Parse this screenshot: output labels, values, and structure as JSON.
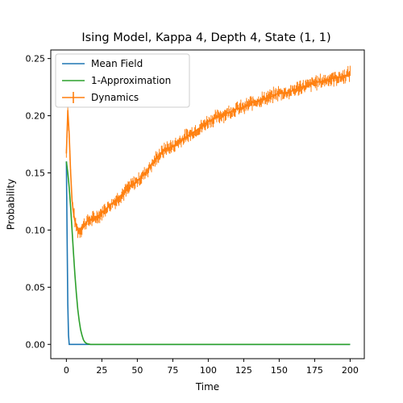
{
  "chart_data": {
    "type": "line",
    "title": "Ising Model, Kappa 4, Depth 4, State (1, 1)",
    "xlabel": "Time",
    "ylabel": "Probability",
    "xlim": [
      -11,
      210
    ],
    "ylim": [
      -0.0125,
      0.2575
    ],
    "xticks": [
      0,
      25,
      50,
      75,
      100,
      125,
      150,
      175,
      200
    ],
    "xtick_labels": [
      "0",
      "25",
      "50",
      "75",
      "100",
      "125",
      "150",
      "175",
      "200"
    ],
    "yticks": [
      0.0,
      0.05,
      0.1,
      0.15,
      0.2,
      0.25
    ],
    "ytick_labels": [
      "0.00",
      "0.05",
      "0.10",
      "0.15",
      "0.20",
      "0.25"
    ],
    "grid": false,
    "legend_position": "upper-left",
    "series": [
      {
        "name": "Mean Field",
        "color": "#1f77b4",
        "style": "line",
        "x": [
          0,
          0.5,
          1,
          1.5,
          2,
          3,
          5,
          10,
          25,
          50,
          100,
          150,
          200
        ],
        "y": [
          0.16,
          0.095,
          0.035,
          0.008,
          0.0,
          0.0,
          0.0,
          0.0,
          0.0,
          0.0,
          0.0,
          0.0,
          0.0
        ]
      },
      {
        "name": "1-Approximation",
        "color": "#2ca02c",
        "style": "line",
        "x": [
          0,
          1,
          2,
          3,
          4,
          5,
          6,
          7,
          8,
          9,
          10,
          11,
          12,
          13,
          14,
          15,
          17,
          20,
          25,
          50,
          100,
          150,
          200
        ],
        "y": [
          0.16,
          0.15,
          0.137,
          0.12,
          0.1,
          0.08,
          0.061,
          0.045,
          0.031,
          0.021,
          0.013,
          0.008,
          0.004,
          0.002,
          0.001,
          0.0005,
          0.0,
          0.0,
          0.0,
          0.0,
          0.0,
          0.0,
          0.0
        ]
      },
      {
        "name": "Dynamics",
        "color": "#ff7f0e",
        "style": "errorbar",
        "x": [
          0,
          1,
          2,
          3,
          4,
          5,
          6,
          7,
          8,
          9,
          10,
          12,
          15,
          20,
          25,
          30,
          35,
          40,
          45,
          50,
          55,
          60,
          65,
          70,
          75,
          80,
          85,
          90,
          95,
          100,
          105,
          110,
          115,
          120,
          125,
          130,
          135,
          140,
          145,
          150,
          155,
          160,
          165,
          170,
          175,
          180,
          185,
          190,
          195,
          200
        ],
        "y": [
          0.167,
          0.205,
          0.183,
          0.15,
          0.126,
          0.115,
          0.108,
          0.103,
          0.1,
          0.099,
          0.1,
          0.104,
          0.108,
          0.11,
          0.115,
          0.121,
          0.126,
          0.132,
          0.138,
          0.143,
          0.149,
          0.157,
          0.165,
          0.171,
          0.173,
          0.178,
          0.182,
          0.186,
          0.19,
          0.195,
          0.198,
          0.201,
          0.203,
          0.206,
          0.207,
          0.211,
          0.213,
          0.215,
          0.217,
          0.22,
          0.22,
          0.222,
          0.225,
          0.226,
          0.229,
          0.23,
          0.232,
          0.233,
          0.234,
          0.237
        ]
      }
    ]
  }
}
